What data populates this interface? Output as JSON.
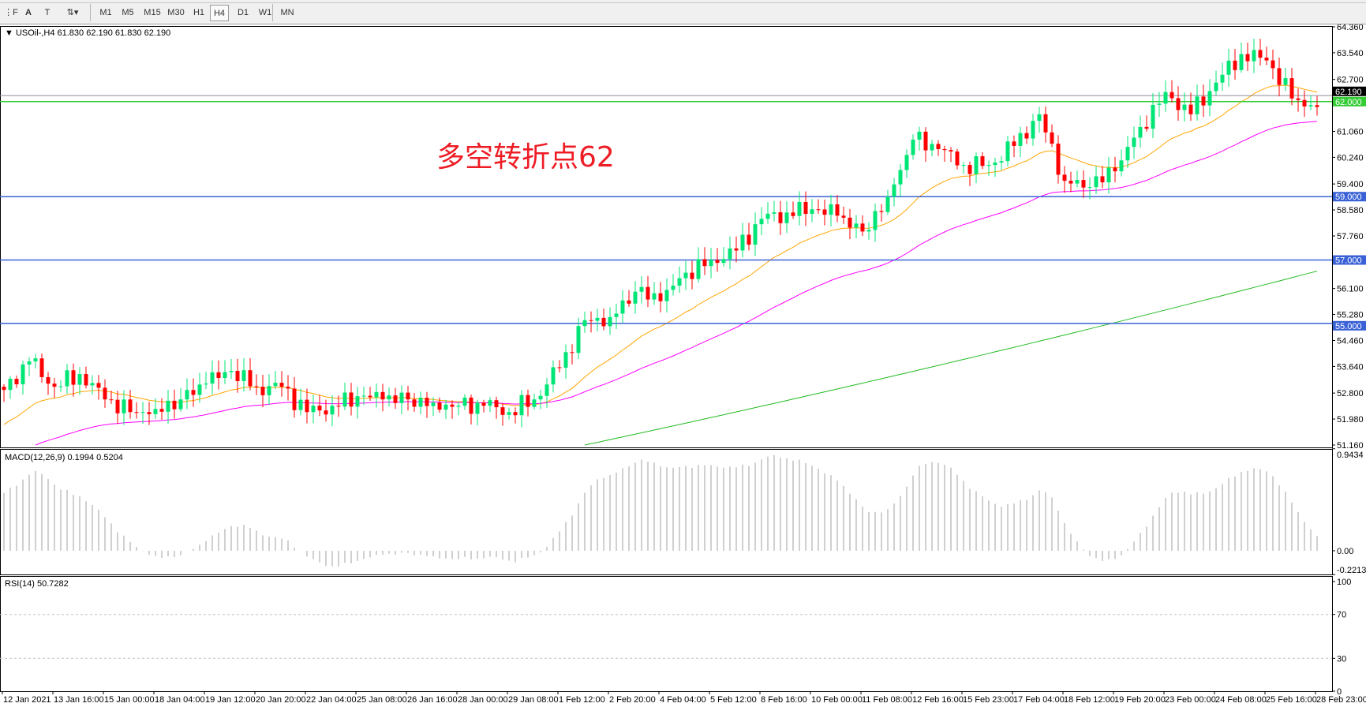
{
  "toolbar": {
    "tools": [
      {
        "name": "period-separator-tool",
        "label": "⋮F"
      },
      {
        "name": "text-tool",
        "label": "A"
      },
      {
        "name": "text-label-tool",
        "label": "T"
      },
      {
        "name": "arrows-tool",
        "label": "⇅▾"
      }
    ],
    "timeframes": [
      "M1",
      "M5",
      "M15",
      "M30",
      "H1",
      "H4",
      "D1",
      "W1",
      "MN"
    ],
    "active_timeframe": "H4"
  },
  "main": {
    "header": "USOil-,H4  61.830 62.190 61.830 62.190",
    "annotation": "多空转折点62",
    "current_price_label": "62.190",
    "price_ticks": [
      "64.360",
      "63.540",
      "62.700",
      "61.060",
      "60.240",
      "59.400",
      "58.580",
      "57.760",
      "56.100",
      "55.280",
      "54.460",
      "53.640",
      "52.800",
      "51.980",
      "51.160"
    ],
    "horizontal_levels": [
      {
        "label": "62.000",
        "value": 62.0,
        "color": "#33cc33"
      },
      {
        "label": "59.000",
        "value": 59.0,
        "color": "#3a62d6"
      },
      {
        "label": "57.000",
        "value": 57.0,
        "color": "#3a62d6"
      },
      {
        "label": "55.000",
        "value": 55.0,
        "color": "#3a62d6"
      }
    ]
  },
  "macd": {
    "header": "MACD(12,26,9) 0.1994 0.5204",
    "ticks": [
      "0.9434",
      "0.00",
      "-0.2213"
    ]
  },
  "rsi": {
    "header": "RSI(14) 50.7282",
    "ticks": [
      "100",
      "70",
      "30",
      "0"
    ]
  },
  "time_axis": [
    "12 Jan 2021",
    "13 Jan 16:00",
    "15 Jan 00:00",
    "18 Jan 04:00",
    "19 Jan 12:00",
    "20 Jan 20:00",
    "22 Jan 04:00",
    "25 Jan 08:00",
    "26 Jan 16:00",
    "28 Jan 00:00",
    "29 Jan 08:00",
    "1 Feb 12:00",
    "2 Feb 20:00",
    "4 Feb 04:00",
    "5 Feb 12:00",
    "8 Feb 16:00",
    "10 Feb 00:00",
    "11 Feb 08:00",
    "12 Feb 16:00",
    "15 Feb 23:00",
    "17 Feb 04:00",
    "18 Feb 12:00",
    "19 Feb 20:00",
    "23 Feb 00:00",
    "24 Feb 08:00",
    "25 Feb 16:00",
    "28 Feb 23:00"
  ],
  "chart_data": {
    "type": "candlestick",
    "symbol": "USOil-",
    "timeframe": "H4",
    "price_range": [
      51.16,
      64.36
    ],
    "close_every_4_bars": [
      52.9,
      53.8,
      53.0,
      53.4,
      52.6,
      52.2,
      52.3,
      52.6,
      53.1,
      53.5,
      53.0,
      53.0,
      52.2,
      52.4,
      52.7,
      52.6,
      52.6,
      52.5,
      52.4,
      52.4,
      52.2,
      52.6,
      53.6,
      55.1,
      55.2,
      56.0,
      55.7,
      56.6,
      57.0,
      57.3,
      58.3,
      58.5,
      58.6,
      58.4,
      57.9,
      59.0,
      60.8,
      60.5,
      60.0,
      60.0,
      60.6,
      61.6,
      59.5,
      59.3,
      59.8,
      61.2,
      62.3,
      61.6,
      62.6,
      63.5,
      63.3,
      62.1,
      61.83
    ],
    "slow_ma_range": [
      51.16,
      56.65
    ],
    "colors": {
      "bull": "#00e676",
      "bear": "#ff0000",
      "fast_ma": "#ffa500",
      "mid_ma": "#ff00ff",
      "slow_ma": "#22bb22",
      "macd_hist": "#c0c0c0",
      "macd_signal": "#ff0000",
      "rsi": "#1e90ff"
    },
    "macd_range": [
      -0.2213,
      0.9434
    ],
    "rsi_levels": [
      30,
      70
    ],
    "rsi_range": [
      0,
      100
    ]
  }
}
